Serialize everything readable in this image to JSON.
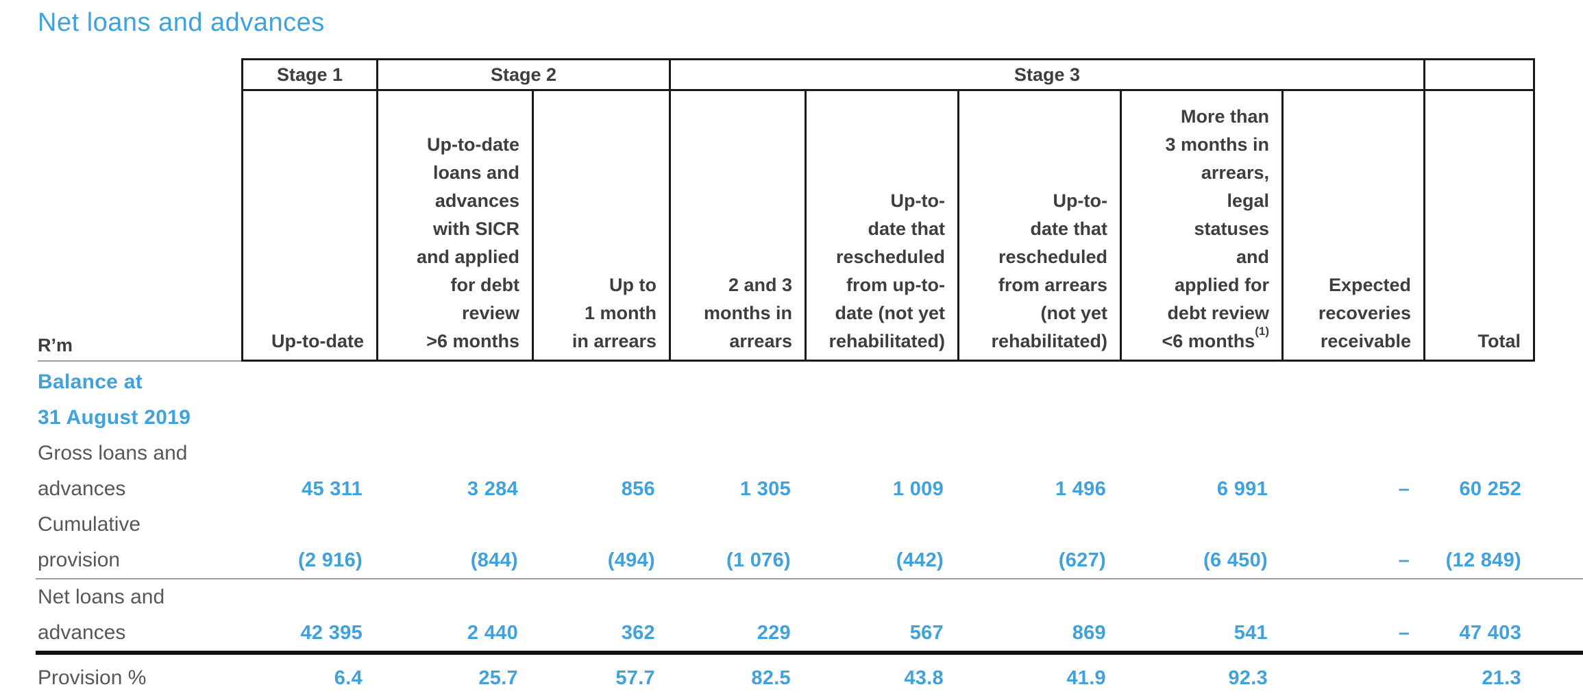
{
  "page_title": "Net loans and advances",
  "colors": {
    "accent_blue": "#3fa2dc",
    "header_text": "#3e3e3d",
    "label_text": "#55575b",
    "border_black": "#1a1a1a",
    "rule_gray": "#9b9b9b"
  },
  "table": {
    "unit_label": "R’m",
    "stage_groups": [
      {
        "label": "Stage 1"
      },
      {
        "label": "Stage 2"
      },
      {
        "label": "Stage 3"
      }
    ],
    "columns": [
      {
        "text": "Up-to-date"
      },
      {
        "text": "Up-to-date\nloans and\nadvances\nwith SICR\nand applied\nfor debt\nreview\n>6 months"
      },
      {
        "text": "Up to\n1 month\nin arrears"
      },
      {
        "text": "2 and 3\nmonths in\narrears"
      },
      {
        "text": "Up-to-\ndate that\nrescheduled\nfrom up-to-\ndate (not yet\nrehabilitated)"
      },
      {
        "text": "Up-to-\ndate that\nrescheduled\nfrom arrears\n(not yet\nrehabilitated)"
      },
      {
        "text": "More than\n3 months in\narrears,\nlegal\nstatuses\nand\napplied for\ndebt review",
        "last_line": "<6 months",
        "sup": "(1)"
      },
      {
        "text": "Expected\nrecoveries\nreceivable"
      },
      {
        "text": "Total"
      }
    ],
    "section_heading": "Balance at\n31 August 2019",
    "rows": [
      {
        "name": "row-gross-loans-and-advances",
        "label": "Gross loans and\nadvances",
        "values": [
          "45 311",
          "3 284",
          "856",
          "1 305",
          "1 009",
          "1 496",
          "6 991",
          "–",
          "60 252"
        ]
      },
      {
        "name": "row-cumulative-provision",
        "label": "Cumulative\nprovision",
        "values": [
          "(2 916)",
          "(844)",
          "(494)",
          "(1 076)",
          "(442)",
          "(627)",
          "(6 450)",
          "–",
          "(12 849)"
        ]
      },
      {
        "name": "row-net-loans-and-advances",
        "label": "Net loans and\nadvances",
        "values": [
          "42 395",
          "2 440",
          "362",
          "229",
          "567",
          "869",
          "541",
          "–",
          "47 403"
        ]
      },
      {
        "name": "row-provision-percent",
        "label": "Provision %",
        "values": [
          "6.4",
          "25.7",
          "57.7",
          "82.5",
          "43.8",
          "41.9",
          "92.3",
          "",
          "21.3"
        ]
      }
    ]
  }
}
